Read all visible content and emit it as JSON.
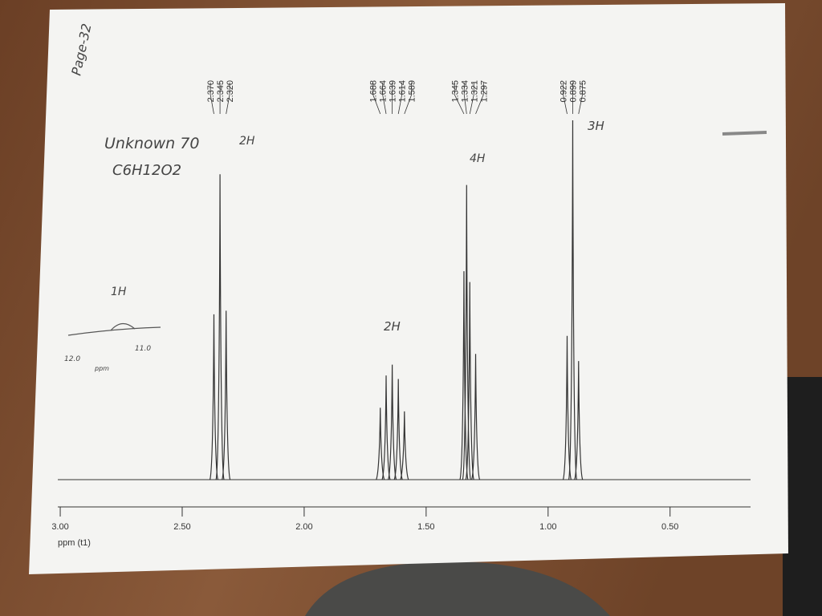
{
  "chart_data": {
    "type": "spectrum",
    "xlabel": "ppm (t1)",
    "xlim": [
      3.01,
      0.17
    ],
    "ylim": [
      0,
      100
    ],
    "color": "#333333",
    "xticks": [
      {
        "value": 3,
        "label": "3.00"
      },
      {
        "value": 2.5,
        "label": "2.50"
      },
      {
        "value": 2,
        "label": "2.00"
      },
      {
        "value": 1.5,
        "label": "1.50"
      },
      {
        "value": 1,
        "label": "1.00"
      },
      {
        "value": 0.5,
        "label": "0.50"
      }
    ],
    "peak_groups": [
      {
        "peaks": [
          {
            "value": 2.37,
            "label": "2.370"
          },
          {
            "value": 2.345,
            "label": "2.345"
          },
          {
            "value": 2.32,
            "label": "2.320"
          }
        ],
        "intensities": [
          46,
          85,
          47
        ]
      },
      {
        "peaks": [
          {
            "value": 1.688,
            "label": "1.688"
          },
          {
            "value": 1.664,
            "label": "1.664"
          },
          {
            "value": 1.639,
            "label": "1.639"
          },
          {
            "value": 1.614,
            "label": "1.614"
          },
          {
            "value": 1.589,
            "label": "1.589"
          }
        ],
        "intensities": [
          20,
          29,
          32,
          28,
          19
        ]
      },
      {
        "peaks": [
          {
            "value": 1.345,
            "label": "1.345"
          },
          {
            "value": 1.334,
            "label": "1.334"
          },
          {
            "value": 1.321,
            "label": "1.321"
          },
          {
            "value": 1.297,
            "label": "1.297"
          }
        ],
        "intensities": [
          58,
          82,
          55,
          35
        ]
      },
      {
        "peaks": [
          {
            "value": 0.922,
            "label": "0.922"
          },
          {
            "value": 0.899,
            "label": "0.899"
          },
          {
            "value": 0.875,
            "label": "0.875"
          }
        ],
        "intensities": [
          40,
          100,
          33
        ]
      }
    ],
    "annotations": [
      "Page-32",
      "Unknown 70",
      "C6H12O2",
      "2H",
      "4H",
      "3H",
      "2H",
      "1H",
      "12.0",
      "11.0",
      "ppm"
    ]
  }
}
